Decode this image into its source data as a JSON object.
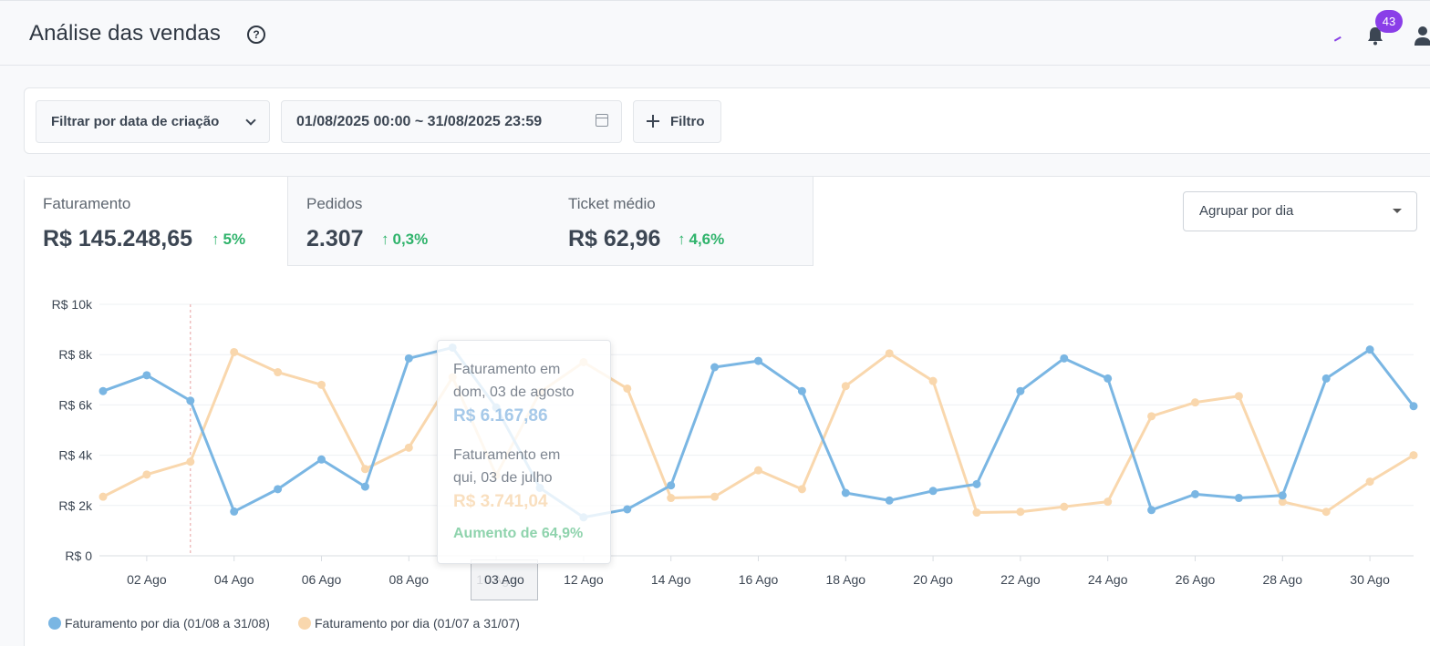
{
  "header": {
    "title": "Análise das vendas",
    "notifications_count": "43"
  },
  "filters": {
    "date_filter_label": "Filtrar por data de criação",
    "date_range": "01/08/2025 00:00 ~ 31/08/2025 23:59",
    "add_filter_label": "Filtro"
  },
  "kpis": [
    {
      "label": "Faturamento",
      "value": "R$ 145.248,65",
      "change": "5%"
    },
    {
      "label": "Pedidos",
      "value": "2.307",
      "change": "0,3%"
    },
    {
      "label": "Ticket médio",
      "value": "R$ 62,96",
      "change": "4,6%"
    }
  ],
  "group_by": {
    "selected": "Agrupar por dia"
  },
  "tooltip": {
    "title_prefix": "Faturamento em",
    "current_date": "dom, 03 de agosto",
    "current_value": "R$ 6.167,86",
    "previous_date": "qui, 03 de julho",
    "previous_value": "R$ 3.741,04",
    "increase": "Aumento de 64,9%",
    "x_label": "03 Ago"
  },
  "colors": {
    "current": "#7ab6e3",
    "previous": "#f9d7ad",
    "accent": "#8a3ee8",
    "positive": "#2fb36b"
  },
  "chart_data": {
    "type": "line",
    "ylim": [
      0,
      10000
    ],
    "y_ticks": [
      {
        "value": 0,
        "label": "R$ 0"
      },
      {
        "value": 2000,
        "label": "R$ 2k"
      },
      {
        "value": 4000,
        "label": "R$ 4k"
      },
      {
        "value": 6000,
        "label": "R$ 6k"
      },
      {
        "value": 8000,
        "label": "R$ 8k"
      },
      {
        "value": 10000,
        "label": "R$ 10k"
      }
    ],
    "x": [
      1,
      2,
      3,
      4,
      5,
      6,
      7,
      8,
      9,
      10,
      11,
      12,
      13,
      14,
      15,
      16,
      17,
      18,
      19,
      20,
      21,
      22,
      23,
      24,
      25,
      26,
      27,
      28,
      29,
      30,
      31
    ],
    "x_tick_labels": [
      {
        "day": 2,
        "label": "02 Ago"
      },
      {
        "day": 4,
        "label": "04 Ago"
      },
      {
        "day": 6,
        "label": "06 Ago"
      },
      {
        "day": 8,
        "label": "08 Ago"
      },
      {
        "day": 10,
        "label": "10 Ago"
      },
      {
        "day": 12,
        "label": "12 Ago"
      },
      {
        "day": 14,
        "label": "14 Ago"
      },
      {
        "day": 16,
        "label": "16 Ago"
      },
      {
        "day": 18,
        "label": "18 Ago"
      },
      {
        "day": 20,
        "label": "20 Ago"
      },
      {
        "day": 22,
        "label": "22 Ago"
      },
      {
        "day": 24,
        "label": "24 Ago"
      },
      {
        "day": 26,
        "label": "26 Ago"
      },
      {
        "day": 28,
        "label": "28 Ago"
      },
      {
        "day": 30,
        "label": "30 Ago"
      }
    ],
    "hover_day": 3,
    "series": [
      {
        "name": "Faturamento por dia (01/08 a 31/08)",
        "color": "#7ab6e3",
        "values": [
          6550,
          7180,
          6168,
          1760,
          2650,
          3830,
          2750,
          7850,
          8280,
          5900,
          2700,
          1530,
          1850,
          2800,
          7500,
          7750,
          6550,
          2500,
          2200,
          2580,
          2850,
          6550,
          7850,
          7050,
          1820,
          2450,
          2300,
          2400,
          7050,
          8200,
          5950
        ]
      },
      {
        "name": "Faturamento por dia (01/07 a 31/07)",
        "color": "#f9d7ad",
        "values": [
          2350,
          3230,
          3741,
          8100,
          7300,
          6800,
          3450,
          4300,
          7100,
          3200,
          6500,
          7700,
          6650,
          2300,
          2350,
          3400,
          2650,
          6750,
          8050,
          6950,
          1720,
          1750,
          1950,
          2150,
          5550,
          6100,
          6350,
          2150,
          1750,
          2950,
          4000
        ]
      }
    ]
  }
}
